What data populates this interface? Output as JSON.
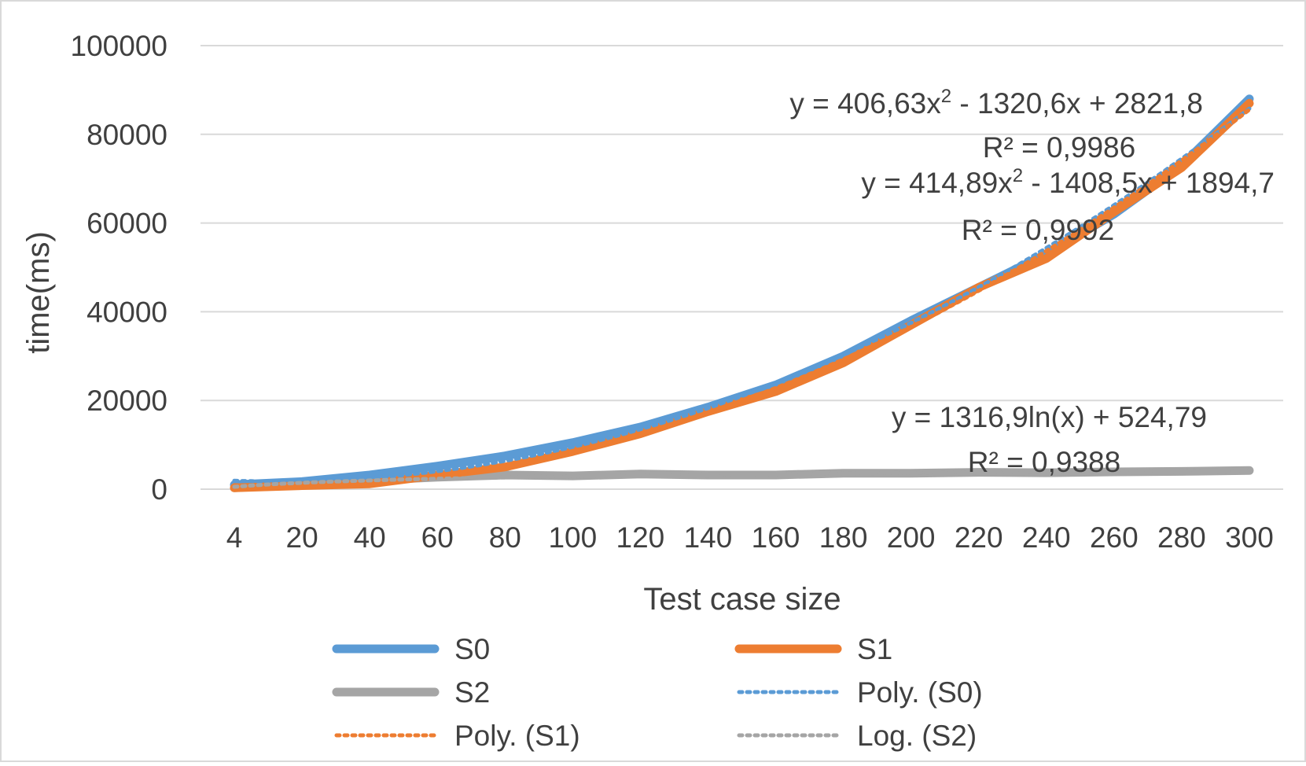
{
  "chart_data": {
    "type": "line",
    "title": "",
    "xlabel": "Test case size",
    "ylabel": "time(ms)",
    "ylim": [
      0,
      100000
    ],
    "yticks": [
      0,
      20000,
      40000,
      60000,
      80000,
      100000
    ],
    "y_tick_labels": [
      "0",
      "20000",
      "40000",
      "60000",
      "80000",
      "100000"
    ],
    "categories": [
      "4",
      "20",
      "40",
      "60",
      "80",
      "100",
      "120",
      "140",
      "160",
      "180",
      "200",
      "220",
      "240",
      "260",
      "280",
      "300"
    ],
    "grid": "horizontal",
    "legend_position": "bottom",
    "colors": {
      "S0": "#5b9bd5",
      "S1": "#ed7d31",
      "S2": "#a5a5a5",
      "text": "#404040",
      "grid": "#d9d9d9"
    },
    "series": [
      {
        "name": "S0",
        "style": "solid",
        "color": "#5b9bd5",
        "values": [
          1000,
          1700,
          3200,
          5200,
          7500,
          10500,
          14000,
          18500,
          23500,
          30000,
          38000,
          45500,
          53000,
          62000,
          73000,
          88000
        ]
      },
      {
        "name": "S1",
        "style": "solid",
        "color": "#ed7d31",
        "values": [
          300,
          800,
          1200,
          3200,
          5000,
          8500,
          12500,
          17500,
          22000,
          28500,
          37000,
          45500,
          52000,
          62500,
          72500,
          87000
        ]
      },
      {
        "name": "S2",
        "style": "solid",
        "color": "#a5a5a5",
        "values": [
          300,
          1200,
          2000,
          2700,
          3200,
          3000,
          3400,
          3200,
          3200,
          3600,
          3600,
          3800,
          3700,
          3900,
          4000,
          4200
        ]
      },
      {
        "name": "Poly. (S0)",
        "style": "dotted",
        "color": "#5b9bd5",
        "trendline": "poly2",
        "coefficients": {
          "a": 406.63,
          "b": -1320.6,
          "c": 2821.8
        }
      },
      {
        "name": "Poly. (S1)",
        "style": "dotted",
        "color": "#ed7d31",
        "trendline": "poly2",
        "coefficients": {
          "a": 414.89,
          "b": -1408.5,
          "c": 1894.7
        }
      },
      {
        "name": "Log. (S2)",
        "style": "dotted",
        "color": "#a5a5a5",
        "trendline": "log",
        "coefficients": {
          "a": 1316.9,
          "b": 524.79
        }
      }
    ],
    "annotations": [
      {
        "eq": "y = 406,63x",
        "sup": "2",
        "eq_tail": " - 1320,6x + 2821,8",
        "r2": "R² = 0,9986"
      },
      {
        "eq": "y = 414,89x",
        "sup": "2",
        "eq_tail": " - 1408,5x + 1894,7",
        "r2": "R² = 0,9992"
      },
      {
        "eq": "y = 1316,9ln(x) + 524,79",
        "sup": "",
        "eq_tail": "",
        "r2": "R² = 0,9388"
      }
    ],
    "legend": [
      "S0",
      "S1",
      "S2",
      "Poly. (S0)",
      "Poly. (S1)",
      "Log. (S2)"
    ]
  }
}
